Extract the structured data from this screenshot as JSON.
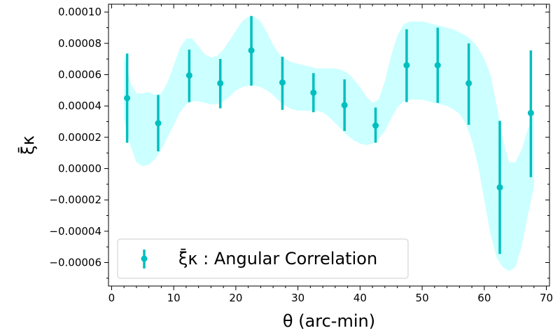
{
  "chart_data": {
    "type": "scatter",
    "xlabel": "θ (arc-min)",
    "ylabel": "ξ̄κ",
    "xlim": [
      -0.5,
      70.5
    ],
    "ylim": [
      -7.5e-05,
      0.000105
    ],
    "xticks": [
      0,
      10,
      20,
      30,
      40,
      50,
      60,
      70
    ],
    "xtick_labels": [
      "0",
      "10",
      "20",
      "30",
      "40",
      "50",
      "60",
      "70"
    ],
    "yticks": [
      0.0001,
      8e-05,
      6e-05,
      4e-05,
      2e-05,
      0.0,
      -2e-05,
      -4e-05,
      -6e-05
    ],
    "ytick_labels": [
      "0.00010",
      "0.00008",
      "0.00006",
      "0.00004",
      "0.00002",
      "0.00000",
      "−0.00002",
      "−0.00004",
      "−0.00006"
    ],
    "legend": {
      "location": "lower-left",
      "entries": [
        "ξ̄κ : Angular Correlation"
      ]
    },
    "colors": {
      "points": "#00bfbf",
      "band": "#ccffff"
    },
    "series": [
      {
        "name": "ξ̄κ : Angular Correlation",
        "x": [
          2.5,
          7.5,
          12.5,
          17.5,
          22.5,
          27.5,
          32.5,
          37.5,
          42.5,
          47.5,
          52.5,
          57.5,
          62.5,
          67.5
        ],
        "y": [
          4.5e-05,
          2.9e-05,
          5.95e-05,
          5.45e-05,
          7.55e-05,
          5.5e-05,
          4.85e-05,
          4.05e-05,
          2.75e-05,
          6.6e-05,
          6.6e-05,
          5.45e-05,
          -1.2e-05,
          3.55e-05
        ],
        "yerr_low": [
          1.65e-05,
          1.1e-05,
          4.25e-05,
          3.85e-05,
          5.3e-05,
          3.75e-05,
          3.6e-05,
          2.4e-05,
          1.65e-05,
          4.25e-05,
          4.2e-05,
          2.8e-05,
          -5.45e-05,
          -5.5e-06
        ],
        "yerr_high": [
          7.35e-05,
          4.7e-05,
          7.6e-05,
          7e-05,
          9.75e-05,
          7.15e-05,
          6.1e-05,
          5.7e-05,
          3.9e-05,
          8.9e-05,
          9e-05,
          8e-05,
          3.05e-05,
          7.55e-05
        ]
      }
    ],
    "band": {
      "x": [
        2,
        3,
        4,
        5,
        6,
        7,
        8,
        9,
        10,
        11,
        12,
        13,
        14,
        15,
        16,
        17,
        18,
        19,
        20,
        21,
        22,
        23,
        24,
        25,
        26,
        27,
        28,
        29,
        30,
        31,
        32,
        33,
        34,
        35,
        36,
        37,
        38,
        39,
        40,
        41,
        42,
        43,
        44,
        45,
        46,
        47,
        48,
        49,
        50,
        51,
        52,
        53,
        54,
        55,
        56,
        57,
        58,
        59,
        60,
        61,
        62,
        63,
        64,
        65,
        66,
        67,
        68
      ],
      "lower": [
        3.2e-05,
        1.5e-05,
        4e-06,
        1.5e-06,
        2.5e-06,
        6e-06,
        1.2e-05,
        2e-05,
        2.8e-05,
        3.6e-05,
        4.1e-05,
        4.3e-05,
        4.3e-05,
        4.2e-05,
        4.1e-05,
        4.1e-05,
        4.3e-05,
        4.6e-05,
        5e-05,
        5.2e-05,
        5.3e-05,
        5.3e-05,
        5.2e-05,
        5e-05,
        4.7e-05,
        4.3e-05,
        4e-05,
        3.8e-05,
        3.7e-05,
        3.7e-05,
        3.7e-05,
        3.7e-05,
        3.6e-05,
        3.3e-05,
        2.9e-05,
        2.5e-05,
        2.1e-05,
        1.8e-05,
        1.6e-05,
        1.5e-05,
        1.6e-05,
        1.9e-05,
        2.4e-05,
        3.2e-05,
        3.9e-05,
        4.3e-05,
        4.4e-05,
        4.4e-05,
        4.4e-05,
        4.3e-05,
        4.2e-05,
        4.1e-05,
        4e-05,
        3.8e-05,
        3.5e-05,
        2.9e-05,
        1.8e-05,
        2e-06,
        -2e-05,
        -4.2e-05,
        -5.7e-05,
        -6.3e-05,
        -6.55e-05,
        -6.3e-05,
        -5e-05,
        -3e-05,
        -1.2e-05
      ],
      "upper": [
        7.3e-05,
        5.5e-05,
        4.8e-05,
        4.8e-05,
        4.9e-05,
        4.7e-05,
        4.8e-05,
        5.5e-05,
        6.6e-05,
        7.7e-05,
        8.3e-05,
        8.3e-05,
        7.8e-05,
        7.3e-05,
        7.1e-05,
        7.2e-05,
        7.6e-05,
        8.2e-05,
        8.8e-05,
        9.4e-05,
        9.7e-05,
        9.7e-05,
        9.4e-05,
        8.7e-05,
        7.9e-05,
        7.3e-05,
        7e-05,
        6.8e-05,
        6.7e-05,
        6.6e-05,
        6.5e-05,
        6.4e-05,
        6.4e-05,
        6.4e-05,
        6.4e-05,
        6.3e-05,
        6.1e-05,
        5.7e-05,
        5.2e-05,
        4.6e-05,
        4.2e-05,
        4.4e-05,
        5.6e-05,
        7.2e-05,
        8.5e-05,
        9.2e-05,
        9.4e-05,
        9.4e-05,
        9.4e-05,
        9.3e-05,
        9.2e-05,
        9.1e-05,
        9e-05,
        8.9e-05,
        8.7e-05,
        8.5e-05,
        8.2e-05,
        7.7e-05,
        7e-05,
        6e-05,
        4e-05,
        1.8e-05,
        4e-06,
        4e-06,
        1.2e-05,
        2.5e-05,
        3.5e-05
      ]
    }
  }
}
